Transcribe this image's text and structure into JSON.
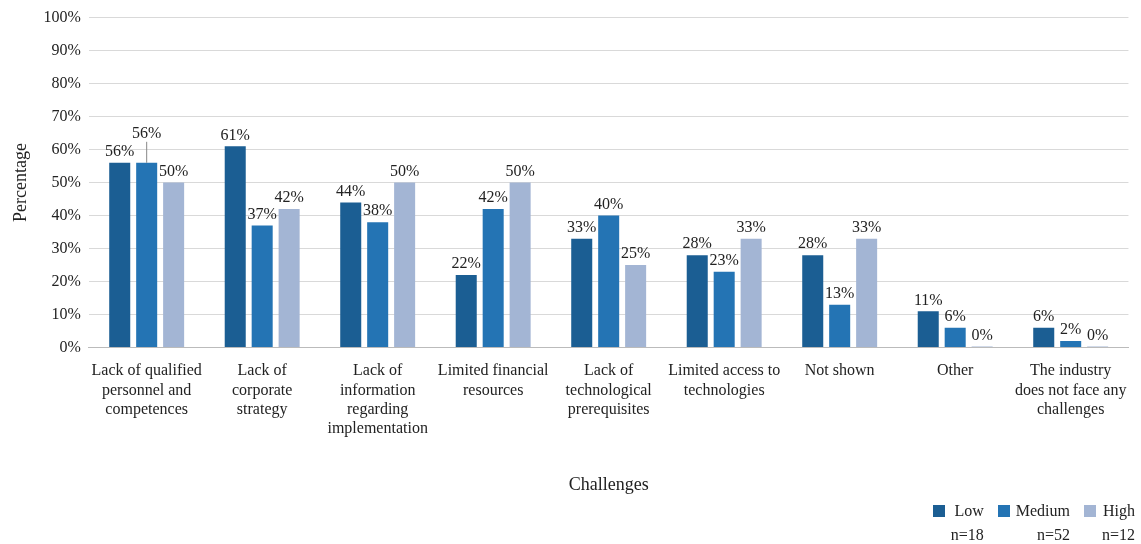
{
  "chart_data": {
    "type": "bar",
    "xlabel": "Challenges",
    "ylabel": "Percentage",
    "categories": [
      "Lack of qualified personnel and competences",
      "Lack of corporate strategy",
      "Lack of information regarding implementation",
      "Limited financial resources",
      "Lack of technological prerequisites",
      "Limited access to technologies",
      "Not shown",
      "Other",
      "The industry does not face any challenges"
    ],
    "series": [
      {
        "name": "Low\nn=18",
        "color": "#1b5e93",
        "values": [
          56,
          61,
          44,
          22,
          33,
          28,
          28,
          11,
          6
        ],
        "value_labels": [
          "56%",
          "61%",
          "44%",
          "22%",
          "33%",
          "28%",
          "28%",
          "11%",
          "6%"
        ]
      },
      {
        "name": "Medium\nn=52",
        "color": "#2474b4",
        "values": [
          56,
          37,
          38,
          42,
          40,
          23,
          13,
          6,
          2
        ],
        "value_labels": [
          "56%",
          "37%",
          "38%",
          "42%",
          "40%",
          "23%",
          "13%",
          "6%",
          "2%"
        ]
      },
      {
        "name": "High\nn=12",
        "color": "#a3b5d4",
        "values": [
          50,
          42,
          50,
          50,
          25,
          33,
          33,
          0,
          0
        ],
        "value_labels": [
          "50%",
          "42%",
          "50%",
          "50%",
          "25%",
          "33%",
          "33%",
          "0%",
          "0%"
        ]
      }
    ],
    "ylim": [
      0,
      100
    ],
    "yticks": [
      {
        "value": 0,
        "label": "0%"
      },
      {
        "value": 10,
        "label": "10%"
      },
      {
        "value": 20,
        "label": "20%"
      },
      {
        "value": 30,
        "label": "30%"
      },
      {
        "value": 40,
        "label": "40%"
      },
      {
        "value": 50,
        "label": "50%"
      },
      {
        "value": 60,
        "label": "60%"
      },
      {
        "value": 70,
        "label": "70%"
      },
      {
        "value": 80,
        "label": "80%"
      },
      {
        "value": 90,
        "label": "90%"
      },
      {
        "value": 100,
        "label": "100%"
      }
    ],
    "grid": "y",
    "legend": "bottom right"
  }
}
